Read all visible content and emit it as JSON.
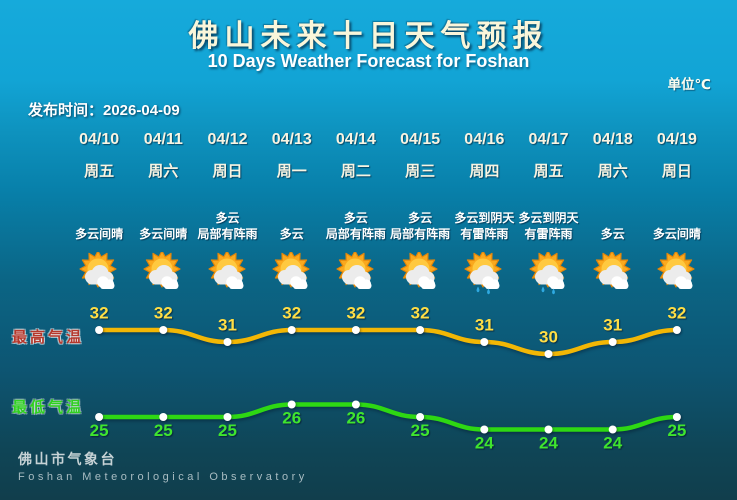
{
  "header": {
    "title": "佛山未来十日天气预报",
    "subtitle": "10 Days Weather Forecast for Foshan",
    "unit_label": "单位℃",
    "publish_time": "发布时间：2026-04-09"
  },
  "labels": {
    "high": "最高气温",
    "low": "最低气温"
  },
  "days": [
    {
      "date": "04/10",
      "weekday": "周五",
      "desc": "多云间晴",
      "icon": "sun-cloud"
    },
    {
      "date": "04/11",
      "weekday": "周六",
      "desc": "多云间晴",
      "icon": "sun-cloud"
    },
    {
      "date": "04/12",
      "weekday": "周日",
      "desc": "多云\n局部有阵雨",
      "icon": "sun-cloud"
    },
    {
      "date": "04/13",
      "weekday": "周一",
      "desc": "多云",
      "icon": "sun-cloud"
    },
    {
      "date": "04/14",
      "weekday": "周二",
      "desc": "多云\n局部有阵雨",
      "icon": "sun-cloud"
    },
    {
      "date": "04/15",
      "weekday": "周三",
      "desc": "多云\n局部有阵雨",
      "icon": "sun-cloud"
    },
    {
      "date": "04/16",
      "weekday": "周四",
      "desc": "多云到阴天\n有雷阵雨",
      "icon": "sun-cloud-rain"
    },
    {
      "date": "04/17",
      "weekday": "周五",
      "desc": "多云到阴天\n有雷阵雨",
      "icon": "sun-cloud-rain"
    },
    {
      "date": "04/18",
      "weekday": "周六",
      "desc": "多云",
      "icon": "sun-cloud"
    },
    {
      "date": "04/19",
      "weekday": "周日",
      "desc": "多云间晴",
      "icon": "sun-cloud"
    }
  ],
  "chart_data": {
    "type": "line",
    "title": "佛山未来十日天气预报",
    "subtitle": "10 Days Weather Forecast for Foshan",
    "unit": "℃",
    "categories": [
      "04/10",
      "04/11",
      "04/12",
      "04/13",
      "04/14",
      "04/15",
      "04/16",
      "04/17",
      "04/18",
      "04/19"
    ],
    "series": [
      {
        "name": "最高气温",
        "values": [
          32,
          32,
          31,
          32,
          32,
          32,
          31,
          30,
          31,
          32
        ],
        "line_color": "#f2b705",
        "text_color": "#ffde45"
      },
      {
        "name": "最低气温",
        "values": [
          25,
          25,
          25,
          26,
          26,
          25,
          24,
          24,
          24,
          25
        ],
        "line_color": "#2ed813",
        "text_color": "#3fe52e"
      }
    ],
    "legend_position": "left",
    "grid": false,
    "data_labels": true
  },
  "footer": {
    "cn": "佛山市气象台",
    "en": "Foshan Meteorological Observatory"
  },
  "colors": {
    "bg_top": "#16aadb",
    "bg_bottom": "#113e4c",
    "high_label": "#b5372b",
    "low_label": "#2fd01f",
    "dot": "#ffffff"
  }
}
